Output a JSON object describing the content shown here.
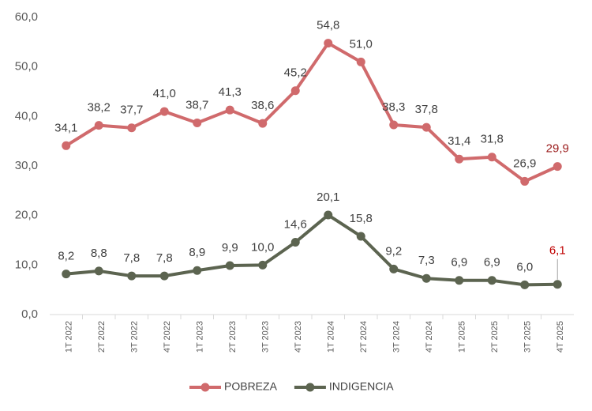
{
  "chart_data": {
    "type": "line",
    "categories": [
      "1T 2022",
      "2T 2022",
      "3T 2022",
      "4T 2022",
      "1T 2023",
      "2T 2023",
      "3T 2023",
      "4T 2023",
      "1T 2024",
      "2T 2024",
      "3T 2024",
      "4T 2024",
      "1T 2025",
      "2T 2025",
      "3T 2025",
      "4T 2025"
    ],
    "series": [
      {
        "name": "POBREZA",
        "color": "#d06a6c",
        "last_label_color": "#9b1c1c",
        "values": [
          34.1,
          38.2,
          37.7,
          41.0,
          38.7,
          41.3,
          38.6,
          45.2,
          54.8,
          51.0,
          38.3,
          37.8,
          31.4,
          31.8,
          26.9,
          29.9
        ],
        "value_labels": [
          "34,1",
          "38,2",
          "37,7",
          "41,0",
          "38,7",
          "41,3",
          "38,6",
          "45,2",
          "54,8",
          "51,0",
          "38,3",
          "37,8",
          "31,4",
          "31,8",
          "26,9",
          "29,9"
        ]
      },
      {
        "name": "INDIGENCIA",
        "color": "#5c6450",
        "last_label_color": "#c00000",
        "values": [
          8.2,
          8.8,
          7.8,
          7.8,
          8.9,
          9.9,
          10.0,
          14.6,
          20.1,
          15.8,
          9.2,
          7.3,
          6.9,
          6.9,
          6.0,
          6.1
        ],
        "value_labels": [
          "8,2",
          "8,8",
          "7,8",
          "7,8",
          "8,9",
          "9,9",
          "10,0",
          "14,6",
          "20,1",
          "15,8",
          "9,2",
          "7,3",
          "6,9",
          "6,9",
          "6,0",
          "6,1"
        ]
      }
    ],
    "ylim": [
      0,
      60
    ],
    "yticks": [
      {
        "value": 0,
        "label": "0,0"
      },
      {
        "value": 10,
        "label": "10,0"
      },
      {
        "value": 20,
        "label": "20,0"
      },
      {
        "value": 30,
        "label": "30,0"
      },
      {
        "value": 40,
        "label": "40,0"
      },
      {
        "value": 50,
        "label": "50,0"
      },
      {
        "value": 60,
        "label": "60,0"
      }
    ],
    "legend": "bottom"
  }
}
